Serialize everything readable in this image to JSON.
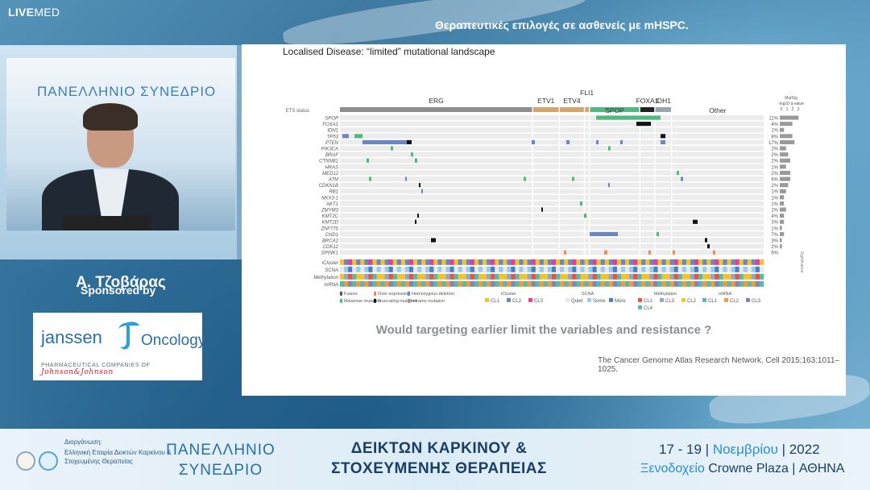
{
  "broadcast": {
    "logo_bold": "LIVE",
    "logo_thin": "MED",
    "slide_title": "Θεραπευτικές επιλογές σε ασθενείς με mHSPC."
  },
  "speaker": {
    "conference_backdrop": "ΠΑΝΕΛΛΗΝΙΟ ΣΥΝΕΔΡΙΟ",
    "name": "Α. Τζοβάρας"
  },
  "sponsor": {
    "label": "Sponsored by",
    "brand": "janssen",
    "division": "Oncology",
    "tagline": "PHARMACEUTICAL COMPANIES OF",
    "parent": "Johnson&Johnson"
  },
  "slide": {
    "heading": "Localised Disease:  “limited” mutational landscape",
    "question": "Would targeting earlier limit the variables and resistance ?",
    "citation": "The Cancer Genome Atlas Research Network. Cell 2015;163:1011–1025.",
    "oncoprint": {
      "groups": [
        "ERG",
        "ETV1",
        "ETV4",
        "FLI1",
        "SPOP",
        "FOXA1",
        "IDH1",
        "Other"
      ],
      "group_widths": [
        230,
        32,
        30,
        6,
        60,
        18,
        20,
        110
      ],
      "group_colors": [
        "#8d8d8d",
        "#d5a36c",
        "#d5a36c",
        "#d5a36c",
        "#4fb980",
        "#222222",
        "#9aa3b0",
        "#ffffff"
      ],
      "row_header_ets": "ETS status",
      "genes": [
        "SPOP",
        "FOXA1",
        "IDH1",
        "TP53",
        "PTEN",
        "PIK3CA",
        "BRAF",
        "CTNNB1",
        "HRAS",
        "MED12",
        "ATM",
        "CDKN1B",
        "RB1",
        "NKX3-1",
        "AKT1",
        "ZMYM3",
        "KMT2C",
        "KMT2D",
        "ZNF770",
        "CHD1",
        "BRCA2",
        "CDK12",
        "SPINK1"
      ],
      "percents": [
        "11%",
        "4%",
        "1%",
        "8%",
        "17%",
        "2%",
        "2%",
        "2%",
        "1%",
        "2%",
        "6%",
        "2%",
        "1%",
        "1%",
        "1%",
        "2%",
        "4%",
        "3%",
        "1%",
        "7%",
        "3%",
        "2%",
        "6%"
      ],
      "mutsig_values": [
        9,
        6,
        2,
        6,
        7,
        3,
        4,
        5,
        3,
        5,
        5,
        4,
        3,
        2,
        2,
        3,
        2,
        2,
        1,
        2,
        1,
        1,
        0
      ],
      "bottom_tracks": [
        "iCluster",
        "SCNA",
        "Methylation",
        "mRNA"
      ],
      "mutsig_title": "MutSig",
      "mutsig_subtitle": "-log10 q-value",
      "mutsig_ticks": [
        "0",
        "1",
        "2",
        "3"
      ],
      "mutsig_side": "Significance",
      "legend_alterations": [
        {
          "label": "Fusion",
          "color": "#555555"
        },
        {
          "label": "Over-expression",
          "color": "#e58e5b"
        },
        {
          "label": "Homozygous deletion",
          "color": "#6b86c2"
        },
        {
          "label": "Missense mutation",
          "color": "#4fb980"
        },
        {
          "label": "Truncating mutation",
          "color": "#111111"
        },
        {
          "label": "Inframe mutation",
          "color": "#9b9b9b"
        }
      ],
      "legend_icluster": {
        "title": "iCluster",
        "items": [
          {
            "label": "CL1",
            "color": "#f0c430"
          },
          {
            "label": "CL2",
            "color": "#6b86c2"
          },
          {
            "label": "CL3",
            "color": "#e23d9b"
          }
        ]
      },
      "legend_scna": {
        "title": "SCNA",
        "items": [
          {
            "label": "Quiet",
            "color": "#e8e8e8"
          },
          {
            "label": "Some",
            "color": "#9ac9ea"
          },
          {
            "label": "More",
            "color": "#4a7fc1"
          }
        ]
      },
      "legend_methylation": {
        "title": "Methylation",
        "items": [
          {
            "label": "CL1",
            "color": "#e8553d"
          },
          {
            "label": "CL3",
            "color": "#8fa7c9"
          },
          {
            "label": "CL2",
            "color": "#f0c430"
          },
          {
            "label": "CL4",
            "color": "#5bb8a9"
          }
        ]
      },
      "legend_mrna": {
        "title": "mRNA",
        "items": [
          {
            "label": "CL1",
            "color": "#5bb8a9"
          },
          {
            "label": "CL2",
            "color": "#f09a3e"
          },
          {
            "label": "CL3",
            "color": "#7d86b7"
          }
        ]
      }
    }
  },
  "footer": {
    "organizer_label": "Διοργάνωση:",
    "organizer_name": "Ελληνική Εταιρία Δεικτών Καρκίνου & Στοχευμένης Θεραπείας",
    "conf_left_1": "ΠΑΝΕΛΛΗΝΙΟ",
    "conf_left_2": "ΣΥΝΕΔΡΙΟ",
    "conf_mid_1": "ΔΕΙΚΤΩΝ ΚΑΡΚΙΝΟΥ &",
    "conf_mid_2": "ΣΤΟΧΕΥΜΕΝΗΣ ΘΕΡΑΠΕΙΑΣ",
    "date_days": "17 - 19",
    "date_month": "Νοεμβρίου",
    "date_year": "2022",
    "venue_hotel": "Ξενοδοχείο",
    "venue_name": "Crowne Plaza",
    "venue_city": "ΑΘΗΝΑ"
  }
}
